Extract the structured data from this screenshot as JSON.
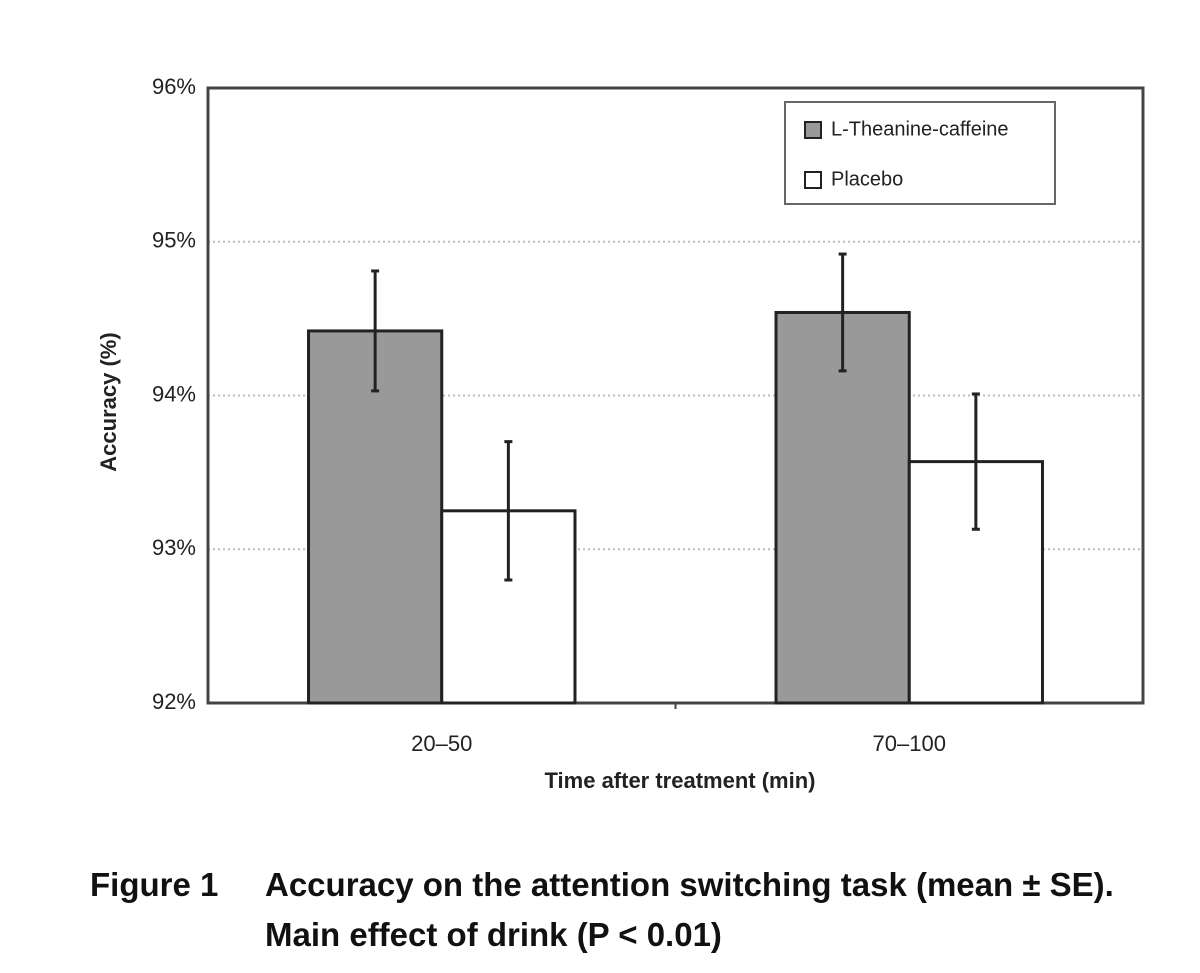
{
  "chart_data": {
    "type": "bar",
    "y_label": "Accuracy (%)",
    "x_label": "Time after treatment (min)",
    "categories": [
      "20–50",
      "70–100"
    ],
    "series": [
      {
        "name": "L-Theanine-caffeine",
        "color": "#999999",
        "values": [
          94.42,
          94.54
        ],
        "errors": [
          0.39,
          0.38
        ]
      },
      {
        "name": "Placebo",
        "color": "#ffffff",
        "values": [
          93.25,
          93.57
        ],
        "errors": [
          0.45,
          0.44
        ]
      }
    ],
    "ylim": [
      92,
      96
    ],
    "yticks": [
      {
        "value": 92,
        "label": "92%"
      },
      {
        "value": 93,
        "label": "93%"
      },
      {
        "value": 94,
        "label": "94%"
      },
      {
        "value": 95,
        "label": "95%"
      },
      {
        "value": 96,
        "label": "96%"
      }
    ],
    "grid": true,
    "legend_position": "upper right"
  },
  "caption": {
    "label": "Figure 1",
    "text": "Accuracy on the attention switching task (mean ± SE). Main effect of drink (P < 0.01)"
  }
}
